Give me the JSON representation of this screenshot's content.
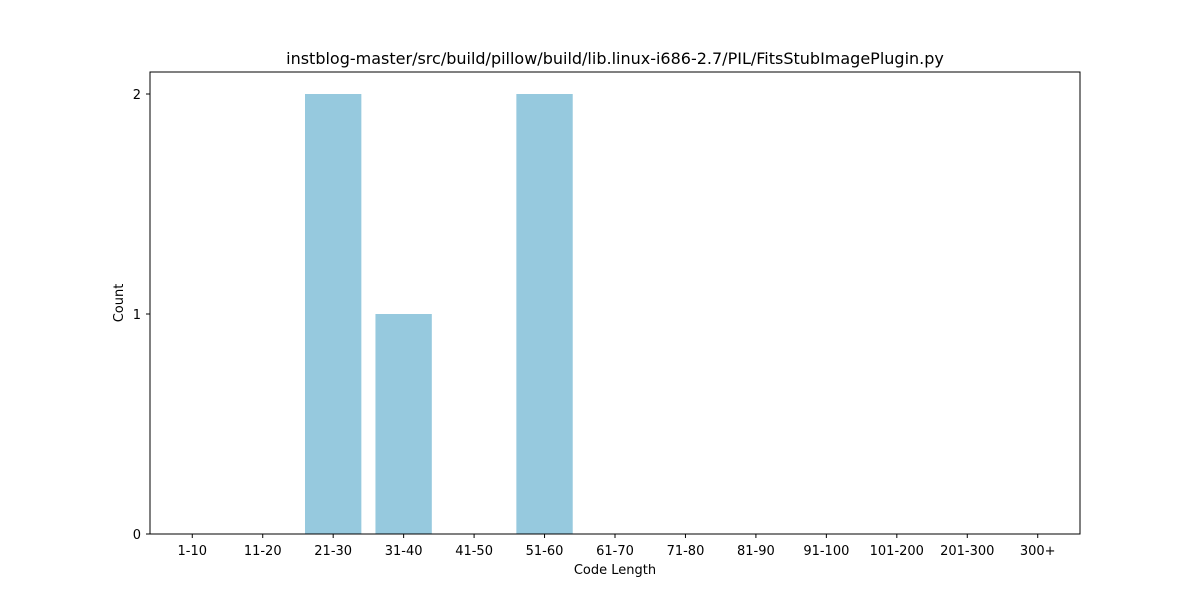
{
  "chart_data": {
    "type": "bar",
    "title": "instblog-master/src/build/pillow/build/lib.linux-i686-2.7/PIL/FitsStubImagePlugin.py",
    "xlabel": "Code Length",
    "ylabel": "Count",
    "categories": [
      "1-10",
      "11-20",
      "21-30",
      "31-40",
      "41-50",
      "51-60",
      "61-70",
      "71-80",
      "81-90",
      "91-100",
      "101-200",
      "201-300",
      "300+"
    ],
    "values": [
      0,
      0,
      2,
      1,
      0,
      2,
      0,
      0,
      0,
      0,
      0,
      0,
      0
    ],
    "yticks": [
      0,
      1,
      2
    ],
    "ylim": [
      0,
      2.1
    ],
    "bar_color": "#96c9de",
    "grid": false,
    "legend": "none"
  }
}
